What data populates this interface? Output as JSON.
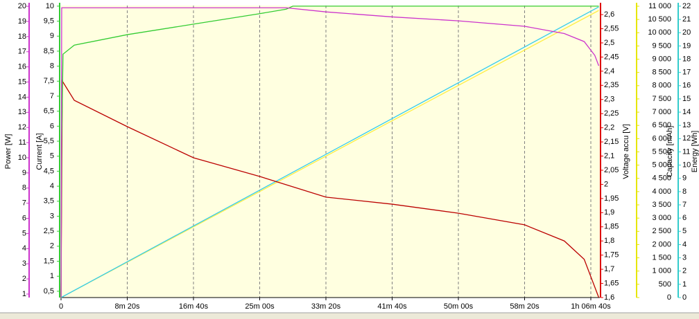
{
  "chart_data": {
    "type": "line",
    "xlim": [
      0,
      4068
    ],
    "xticks": [
      {
        "value": 0,
        "label": "0"
      },
      {
        "value": 500,
        "label": "8m 20s"
      },
      {
        "value": 1000,
        "label": "16m 40s"
      },
      {
        "value": 1500,
        "label": "25m 00s"
      },
      {
        "value": 2000,
        "label": "33m 20s"
      },
      {
        "value": 2500,
        "label": "41m 40s"
      },
      {
        "value": 3000,
        "label": "50m 00s"
      },
      {
        "value": 3500,
        "label": "58m 20s"
      },
      {
        "value": 4000,
        "label": "1h 06m 40s"
      }
    ],
    "grid": true,
    "axes": {
      "power": {
        "label": "Power [W]",
        "color": "#cc33cc",
        "lim": [
          0.77,
          20.05
        ],
        "ticks": [
          1,
          2,
          3,
          4,
          5,
          6,
          7,
          8,
          9,
          10,
          11,
          12,
          13,
          14,
          15,
          16,
          17,
          18,
          19,
          20
        ]
      },
      "current": {
        "label": "Current [A]",
        "color": "#33cc33",
        "lim": [
          0.29,
          10.02
        ],
        "ticks": [
          {
            "value": 0.5,
            "label": "0,5"
          },
          1,
          {
            "value": 1.5,
            "label": "1,5"
          },
          2,
          {
            "value": 2.5,
            "label": "2,5"
          },
          3,
          {
            "value": 3.5,
            "label": "3,5"
          },
          4,
          {
            "value": 4.5,
            "label": "4,5"
          },
          5,
          {
            "value": 5.5,
            "label": "5,5"
          },
          6,
          {
            "value": 6.5,
            "label": "6,5"
          },
          7,
          {
            "value": 7.5,
            "label": "7,5"
          },
          8,
          {
            "value": 8.5,
            "label": "8,5"
          },
          9,
          {
            "value": 9.5,
            "label": "9,5"
          },
          10
        ]
      },
      "voltage": {
        "label": "Voltage accu [V]",
        "color": "#dd0000",
        "lim": [
          1.6,
          2.632
        ],
        "ticks": [
          {
            "value": 1.6,
            "label": "1,6"
          },
          {
            "value": 1.65,
            "label": "1,65"
          },
          {
            "value": 1.7,
            "label": "1,7"
          },
          {
            "value": 1.75,
            "label": "1,75"
          },
          {
            "value": 1.8,
            "label": "1,8"
          },
          {
            "value": 1.85,
            "label": "1,85"
          },
          {
            "value": 1.9,
            "label": "1,9"
          },
          {
            "value": 1.95,
            "label": "1,95"
          },
          2,
          {
            "value": 2.05,
            "label": "2,05"
          },
          {
            "value": 2.1,
            "label": "2,1"
          },
          {
            "value": 2.15,
            "label": "2,15"
          },
          {
            "value": 2.2,
            "label": "2,2"
          },
          {
            "value": 2.25,
            "label": "2,25"
          },
          {
            "value": 2.3,
            "label": "2,3"
          },
          {
            "value": 2.35,
            "label": "2,35"
          },
          {
            "value": 2.4,
            "label": "2,4"
          },
          {
            "value": 2.45,
            "label": "2,45"
          },
          {
            "value": 2.5,
            "label": "2,5"
          },
          {
            "value": 2.55,
            "label": "2,55"
          },
          {
            "value": 2.6,
            "label": "2,6"
          }
        ]
      },
      "capacity": {
        "label": "Capacity [mAh]",
        "color": "#e6e600",
        "lim": [
          0,
          11026
        ],
        "ticks": [
          0,
          500,
          {
            "value": 1000,
            "label": "1 000"
          },
          {
            "value": 1500,
            "label": "1 500"
          },
          {
            "value": 2000,
            "label": "2 000"
          },
          {
            "value": 2500,
            "label": "2 500"
          },
          {
            "value": 3000,
            "label": "3 000"
          },
          {
            "value": 3500,
            "label": "3 500"
          },
          {
            "value": 4000,
            "label": "4 000"
          },
          {
            "value": 4500,
            "label": "4 500"
          },
          {
            "value": 5000,
            "label": "5 000"
          },
          {
            "value": 5500,
            "label": "5 500"
          },
          {
            "value": 6000,
            "label": "6 000"
          },
          {
            "value": 6500,
            "label": "6 500"
          },
          {
            "value": 7000,
            "label": "7 000"
          },
          {
            "value": 7500,
            "label": "7 500"
          },
          {
            "value": 8000,
            "label": "8 000"
          },
          {
            "value": 8500,
            "label": "8 500"
          },
          {
            "value": 9000,
            "label": "9 000"
          },
          {
            "value": 9500,
            "label": "9 500"
          },
          {
            "value": 10000,
            "label": "10 000"
          },
          {
            "value": 10500,
            "label": "10 500"
          },
          {
            "value": 11000,
            "label": "11 000"
          }
        ]
      },
      "energy": {
        "label": "Energy [Wh]",
        "color": "#33cccc",
        "lim": [
          0,
          22.05
        ],
        "ticks": [
          0,
          1,
          2,
          3,
          4,
          5,
          6,
          7,
          8,
          9,
          10,
          11,
          12,
          13,
          14,
          15,
          16,
          17,
          18,
          19,
          20,
          21,
          22
        ]
      }
    },
    "series": [
      {
        "axis": "capacity",
        "color": "#ffee44",
        "x": [
          0,
          4060
        ],
        "values": [
          0,
          10840
        ]
      },
      {
        "axis": "energy",
        "color": "#33ccee",
        "x": [
          0,
          4060
        ],
        "values": [
          0,
          21.95
        ]
      },
      {
        "axis": "voltage",
        "color": "#bb0000",
        "x": [
          0,
          10,
          100,
          500,
          1000,
          1500,
          2000,
          2500,
          3000,
          3500,
          3800,
          3950,
          4030,
          4060
        ],
        "values": [
          1.6,
          2.365,
          2.297,
          2.204,
          2.094,
          2.028,
          1.955,
          1.93,
          1.898,
          1.857,
          1.8,
          1.735,
          1.637,
          1.6
        ]
      },
      {
        "axis": "current",
        "color": "#33cc33",
        "x": [
          0,
          5,
          15,
          100,
          500,
          1000,
          1500,
          1700,
          1750,
          4060
        ],
        "values": [
          0.3,
          5.5,
          8.4,
          8.7,
          9.05,
          9.4,
          9.75,
          9.9,
          10.0,
          10.0
        ]
      },
      {
        "axis": "power",
        "color": "#cc33cc",
        "x": [
          0,
          5,
          1700,
          2000,
          2500,
          3000,
          3500,
          3800,
          3950,
          4030,
          4060
        ],
        "values": [
          0.8,
          19.9,
          19.9,
          19.63,
          19.3,
          19.04,
          18.68,
          18.2,
          17.67,
          16.76,
          16.07
        ]
      }
    ]
  }
}
